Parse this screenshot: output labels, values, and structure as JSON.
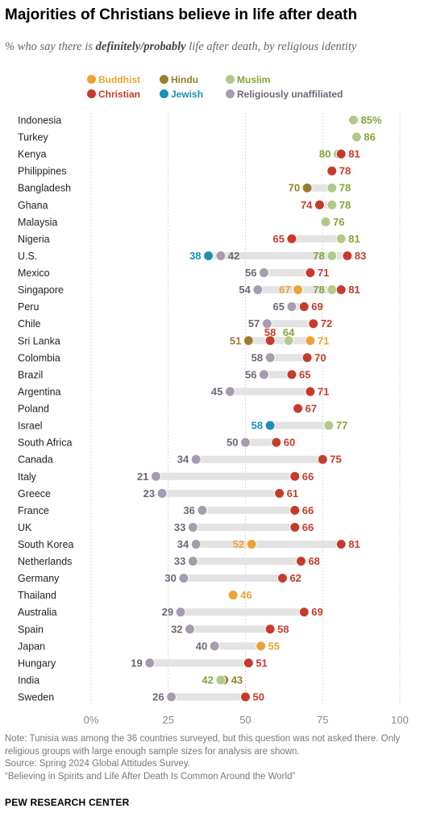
{
  "title": "Majorities of Christians believe in life after death",
  "subtitle": {
    "before": "% who say there is ",
    "emphasis": "definitely/probably",
    "after": " life after death, by religious identity"
  },
  "legend": [
    {
      "key": "buddhist",
      "label": "Buddhist"
    },
    {
      "key": "hindu",
      "label": "Hindu"
    },
    {
      "key": "muslim",
      "label": "Muslim"
    },
    {
      "key": "christian",
      "label": "Christian"
    },
    {
      "key": "jewish",
      "label": "Jewish"
    },
    {
      "key": "unaffiliated",
      "label": "Religiously unaffiliated"
    }
  ],
  "colors": {
    "buddhist": "#eda239",
    "hindu": "#9b7d2f",
    "muslim": "#b3c98a",
    "muslim_text": "#84a43a",
    "christian": "#c63b2c",
    "jewish": "#1a8fb8",
    "unaffiliated": "#a79caf",
    "unaffiliated_text": "#6f6678",
    "range_bar": "#e3e3e3",
    "gridline": "#d7d7d7"
  },
  "chart_data": {
    "type": "dot_plot",
    "xlim": [
      0,
      100
    ],
    "xticks": [
      "0%",
      "25",
      "50",
      "75",
      "100"
    ],
    "series_keys": [
      "buddhist",
      "hindu",
      "muslim",
      "christian",
      "jewish",
      "unaffiliated"
    ],
    "rows": [
      {
        "country": "Indonesia",
        "values": {
          "muslim": 85
        }
      },
      {
        "country": "Turkey",
        "values": {
          "muslim": 86
        }
      },
      {
        "country": "Kenya",
        "values": {
          "muslim": 80,
          "christian": 81
        }
      },
      {
        "country": "Philippines",
        "values": {
          "christian": 78
        }
      },
      {
        "country": "Bangladesh",
        "values": {
          "hindu": 70,
          "muslim": 78
        }
      },
      {
        "country": "Ghana",
        "values": {
          "christian": 74,
          "muslim": 78
        }
      },
      {
        "country": "Malaysia",
        "values": {
          "muslim": 76
        }
      },
      {
        "country": "Nigeria",
        "values": {
          "christian": 65,
          "muslim": 81
        }
      },
      {
        "country": "U.S.",
        "values": {
          "jewish": 38,
          "unaffiliated": 42,
          "muslim": 78,
          "christian": 83
        }
      },
      {
        "country": "Mexico",
        "values": {
          "unaffiliated": 56,
          "christian": 71
        }
      },
      {
        "country": "Singapore",
        "values": {
          "unaffiliated": 54,
          "buddhist": 67,
          "muslim": 78,
          "christian": 81
        }
      },
      {
        "country": "Peru",
        "values": {
          "unaffiliated": 65,
          "christian": 69
        }
      },
      {
        "country": "Chile",
        "values": {
          "unaffiliated": 57,
          "christian": 72
        }
      },
      {
        "country": "Sri Lanka",
        "values": {
          "hindu": 51,
          "christian": 58,
          "muslim": 64,
          "buddhist": 71
        }
      },
      {
        "country": "Colombia",
        "values": {
          "unaffiliated": 58,
          "christian": 70
        }
      },
      {
        "country": "Brazil",
        "values": {
          "unaffiliated": 56,
          "christian": 65
        }
      },
      {
        "country": "Argentina",
        "values": {
          "unaffiliated": 45,
          "christian": 71
        }
      },
      {
        "country": "Poland",
        "values": {
          "christian": 67
        }
      },
      {
        "country": "Israel",
        "values": {
          "jewish": 58,
          "muslim": 77
        }
      },
      {
        "country": "South Africa",
        "values": {
          "unaffiliated": 50,
          "christian": 60
        }
      },
      {
        "country": "Canada",
        "values": {
          "unaffiliated": 34,
          "christian": 75
        }
      },
      {
        "country": "Italy",
        "values": {
          "unaffiliated": 21,
          "christian": 66
        }
      },
      {
        "country": "Greece",
        "values": {
          "unaffiliated": 23,
          "christian": 61
        }
      },
      {
        "country": "France",
        "values": {
          "unaffiliated": 36,
          "christian": 66
        }
      },
      {
        "country": "UK",
        "values": {
          "unaffiliated": 33,
          "christian": 66
        }
      },
      {
        "country": "South Korea",
        "values": {
          "unaffiliated": 34,
          "buddhist": 52,
          "christian": 81
        }
      },
      {
        "country": "Netherlands",
        "values": {
          "unaffiliated": 33,
          "christian": 68
        }
      },
      {
        "country": "Germany",
        "values": {
          "unaffiliated": 30,
          "christian": 62
        }
      },
      {
        "country": "Thailand",
        "values": {
          "buddhist": 46
        }
      },
      {
        "country": "Australia",
        "values": {
          "unaffiliated": 29,
          "christian": 69
        }
      },
      {
        "country": "Spain",
        "values": {
          "unaffiliated": 32,
          "christian": 58
        }
      },
      {
        "country": "Japan",
        "values": {
          "unaffiliated": 40,
          "buddhist": 55
        }
      },
      {
        "country": "Hungary",
        "values": {
          "unaffiliated": 19,
          "christian": 51
        }
      },
      {
        "country": "India",
        "values": {
          "muslim": 42,
          "hindu": 43
        }
      },
      {
        "country": "Sweden",
        "values": {
          "unaffiliated": 26,
          "christian": 50
        }
      }
    ],
    "labels": [
      {
        "row": "Indonesia",
        "series": "muslim",
        "text": "85%",
        "side": "right"
      },
      {
        "row": "Turkey",
        "series": "muslim",
        "text": "86",
        "side": "right"
      },
      {
        "row": "Kenya",
        "series": "muslim",
        "text": "80",
        "side": "left"
      },
      {
        "row": "Kenya",
        "series": "christian",
        "text": "81",
        "side": "right"
      },
      {
        "row": "Philippines",
        "series": "christian",
        "text": "78",
        "side": "right"
      },
      {
        "row": "Bangladesh",
        "series": "hindu",
        "text": "70",
        "side": "left"
      },
      {
        "row": "Bangladesh",
        "series": "muslim",
        "text": "78",
        "side": "right"
      },
      {
        "row": "Ghana",
        "series": "christian",
        "text": "74",
        "side": "left"
      },
      {
        "row": "Ghana",
        "series": "muslim",
        "text": "78",
        "side": "right"
      },
      {
        "row": "Malaysia",
        "series": "muslim",
        "text": "76",
        "side": "right"
      },
      {
        "row": "Nigeria",
        "series": "christian",
        "text": "65",
        "side": "left"
      },
      {
        "row": "Nigeria",
        "series": "muslim",
        "text": "81",
        "side": "right"
      },
      {
        "row": "U.S.",
        "series": "jewish",
        "text": "38",
        "side": "left"
      },
      {
        "row": "U.S.",
        "series": "unaffiliated",
        "text": "42",
        "side": "right"
      },
      {
        "row": "U.S.",
        "series": "muslim",
        "text": "78",
        "side": "left"
      },
      {
        "row": "U.S.",
        "series": "christian",
        "text": "83",
        "side": "right"
      },
      {
        "row": "Mexico",
        "series": "unaffiliated",
        "text": "56",
        "side": "left"
      },
      {
        "row": "Mexico",
        "series": "christian",
        "text": "71",
        "side": "right"
      },
      {
        "row": "Singapore",
        "series": "unaffiliated",
        "text": "54",
        "side": "left"
      },
      {
        "row": "Singapore",
        "series": "buddhist",
        "text": "67",
        "side": "left"
      },
      {
        "row": "Singapore",
        "series": "muslim",
        "text": "78",
        "side": "left"
      },
      {
        "row": "Singapore",
        "series": "christian",
        "text": "81",
        "side": "right"
      },
      {
        "row": "Peru",
        "series": "unaffiliated",
        "text": "65",
        "side": "left"
      },
      {
        "row": "Peru",
        "series": "christian",
        "text": "69",
        "side": "right"
      },
      {
        "row": "Chile",
        "series": "unaffiliated",
        "text": "57",
        "side": "left"
      },
      {
        "row": "Chile",
        "series": "christian",
        "text": "72",
        "side": "right"
      },
      {
        "row": "Sri Lanka",
        "series": "hindu",
        "text": "51",
        "side": "left"
      },
      {
        "row": "Sri Lanka",
        "series": "christian",
        "text": "58",
        "side": "above"
      },
      {
        "row": "Sri Lanka",
        "series": "muslim",
        "text": "64",
        "side": "above"
      },
      {
        "row": "Sri Lanka",
        "series": "buddhist",
        "text": "71",
        "side": "right"
      },
      {
        "row": "Colombia",
        "series": "unaffiliated",
        "text": "58",
        "side": "left"
      },
      {
        "row": "Colombia",
        "series": "christian",
        "text": "70",
        "side": "right"
      },
      {
        "row": "Brazil",
        "series": "unaffiliated",
        "text": "56",
        "side": "left"
      },
      {
        "row": "Brazil",
        "series": "christian",
        "text": "65",
        "side": "right"
      },
      {
        "row": "Argentina",
        "series": "unaffiliated",
        "text": "45",
        "side": "left"
      },
      {
        "row": "Argentina",
        "series": "christian",
        "text": "71",
        "side": "right"
      },
      {
        "row": "Poland",
        "series": "christian",
        "text": "67",
        "side": "right"
      },
      {
        "row": "Israel",
        "series": "jewish",
        "text": "58",
        "side": "left"
      },
      {
        "row": "Israel",
        "series": "muslim",
        "text": "77",
        "side": "right"
      },
      {
        "row": "South Africa",
        "series": "unaffiliated",
        "text": "50",
        "side": "left"
      },
      {
        "row": "South Africa",
        "series": "christian",
        "text": "60",
        "side": "right"
      },
      {
        "row": "Canada",
        "series": "unaffiliated",
        "text": "34",
        "side": "left"
      },
      {
        "row": "Canada",
        "series": "christian",
        "text": "75",
        "side": "right"
      },
      {
        "row": "Italy",
        "series": "unaffiliated",
        "text": "21",
        "side": "left"
      },
      {
        "row": "Italy",
        "series": "christian",
        "text": "66",
        "side": "right"
      },
      {
        "row": "Greece",
        "series": "unaffiliated",
        "text": "23",
        "side": "left"
      },
      {
        "row": "Greece",
        "series": "christian",
        "text": "61",
        "side": "right"
      },
      {
        "row": "France",
        "series": "unaffiliated",
        "text": "36",
        "side": "left"
      },
      {
        "row": "France",
        "series": "christian",
        "text": "66",
        "side": "right"
      },
      {
        "row": "UK",
        "series": "unaffiliated",
        "text": "33",
        "side": "left"
      },
      {
        "row": "UK",
        "series": "christian",
        "text": "66",
        "side": "right"
      },
      {
        "row": "South Korea",
        "series": "unaffiliated",
        "text": "34",
        "side": "left"
      },
      {
        "row": "South Korea",
        "series": "buddhist",
        "text": "52",
        "side": "left"
      },
      {
        "row": "South Korea",
        "series": "christian",
        "text": "81",
        "side": "right"
      },
      {
        "row": "Netherlands",
        "series": "unaffiliated",
        "text": "33",
        "side": "left"
      },
      {
        "row": "Netherlands",
        "series": "christian",
        "text": "68",
        "side": "right"
      },
      {
        "row": "Germany",
        "series": "unaffiliated",
        "text": "30",
        "side": "left"
      },
      {
        "row": "Germany",
        "series": "christian",
        "text": "62",
        "side": "right"
      },
      {
        "row": "Thailand",
        "series": "buddhist",
        "text": "46",
        "side": "right"
      },
      {
        "row": "Australia",
        "series": "unaffiliated",
        "text": "29",
        "side": "left"
      },
      {
        "row": "Australia",
        "series": "christian",
        "text": "69",
        "side": "right"
      },
      {
        "row": "Spain",
        "series": "unaffiliated",
        "text": "32",
        "side": "left"
      },
      {
        "row": "Spain",
        "series": "christian",
        "text": "58",
        "side": "right"
      },
      {
        "row": "Japan",
        "series": "unaffiliated",
        "text": "40",
        "side": "left"
      },
      {
        "row": "Japan",
        "series": "buddhist",
        "text": "55",
        "side": "right"
      },
      {
        "row": "Hungary",
        "series": "unaffiliated",
        "text": "19",
        "side": "left"
      },
      {
        "row": "Hungary",
        "series": "christian",
        "text": "51",
        "side": "right"
      },
      {
        "row": "India",
        "series": "muslim",
        "text": "42",
        "side": "left"
      },
      {
        "row": "India",
        "series": "hindu",
        "text": "43",
        "side": "right"
      },
      {
        "row": "Sweden",
        "series": "unaffiliated",
        "text": "26",
        "side": "left"
      },
      {
        "row": "Sweden",
        "series": "christian",
        "text": "50",
        "side": "right"
      }
    ]
  },
  "notes": [
    "Note: Tunisia was among the 36 countries surveyed, but this question was not asked there. Only religious groups with large enough sample sizes for analysis are shown.",
    "Source: Spring 2024 Global Attitudes Survey.",
    "“Believing in Spirits and Life After Death Is Common Around the World”"
  ],
  "brand": "PEW RESEARCH CENTER"
}
